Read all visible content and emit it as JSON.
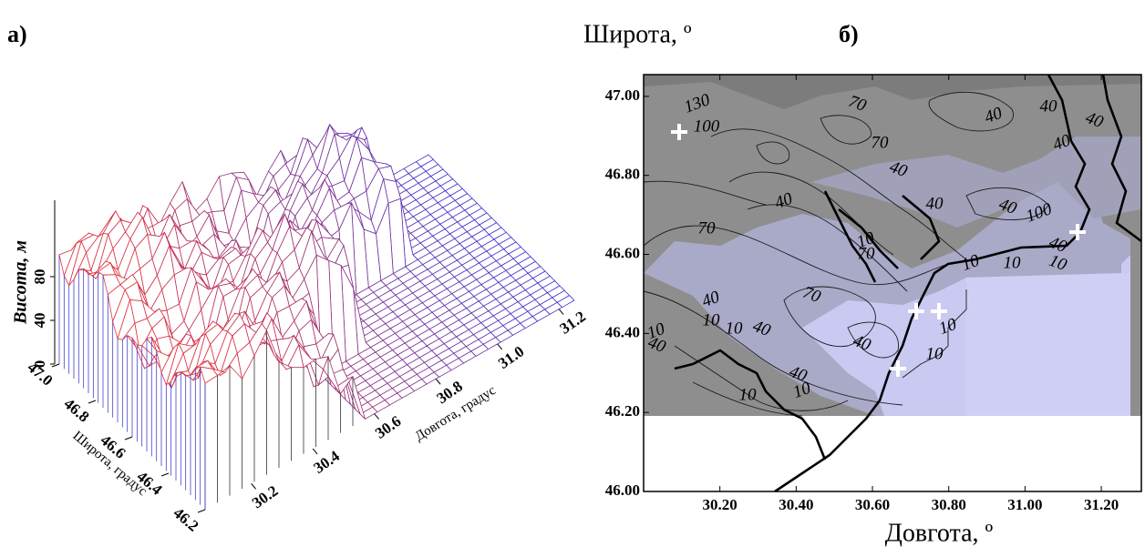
{
  "chart_data": [
    {
      "type": "surface",
      "panel_label": "а)",
      "zlabel": "Висота, м",
      "xlabel": "Довгота, градус",
      "ylabel": "Широта, градус",
      "xlim": [
        30.05,
        31.25
      ],
      "ylim": [
        46.2,
        47.0
      ],
      "zlim": [
        0,
        150
      ],
      "xticks": [
        30.2,
        30.4,
        30.6,
        30.8,
        {
          "value": 31,
          "label": "31.0"
        },
        31.2
      ],
      "yticks": [
        {
          "value": 47,
          "label": "47.0"
        },
        46.8,
        46.6,
        46.4,
        46.2
      ],
      "zticks": [
        0,
        40,
        80
      ]
    },
    {
      "type": "contour",
      "panel_label": "б)",
      "ylabel": "Широта, º",
      "xlabel": "Довгота, º",
      "xlim": [
        30.0,
        31.305
      ],
      "ylim": [
        46.0,
        47.055
      ],
      "xticks": [
        {
          "value": 30.2,
          "label": "30.20"
        },
        {
          "value": 30.4,
          "label": "30.40"
        },
        {
          "value": 30.6,
          "label": "30.60"
        },
        {
          "value": 30.8,
          "label": "30.80"
        },
        {
          "value": 31,
          "label": "31.00"
        },
        {
          "value": 31.2,
          "label": "31.20"
        }
      ],
      "yticks": [
        {
          "value": 46,
          "label": "46.00"
        },
        {
          "value": 46.2,
          "label": "46.20"
        },
        {
          "value": 46.4,
          "label": "46.40"
        },
        {
          "value": 46.6,
          "label": "46.60"
        },
        {
          "value": 46.8,
          "label": "46.80"
        },
        {
          "value": 47,
          "label": "47.00"
        }
      ],
      "contour_labels": [
        130,
        100,
        70,
        40,
        40,
        40,
        40,
        70,
        40,
        40,
        40,
        40,
        100,
        70,
        40,
        10,
        10,
        10,
        10,
        70,
        70,
        40,
        10,
        40,
        10,
        10,
        40,
        10,
        10,
        40,
        10,
        10,
        40
      ]
    }
  ]
}
